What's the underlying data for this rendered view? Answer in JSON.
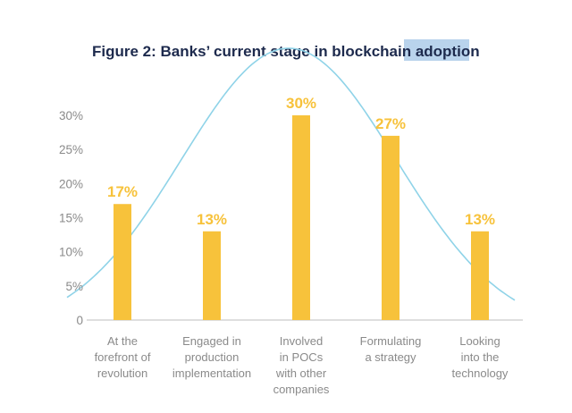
{
  "title": {
    "prefix": "Figure 2: Banks’ current stage in blockchain ",
    "highlighted": "adoption"
  },
  "colors": {
    "bar": "#f7c23b",
    "curve": "#8fd3e8",
    "axis": "#9a9a9a",
    "title": "#1d2a4d",
    "highlight": "#b9d3ec"
  },
  "chart_data": {
    "type": "bar",
    "title": "Figure 2: Banks’ current stage in blockchain adoption",
    "categories": [
      [
        "At the",
        "forefront of",
        "revolution"
      ],
      [
        "Engaged in",
        "production",
        "implementation"
      ],
      [
        "Involved",
        "in POCs",
        "with other",
        "companies"
      ],
      [
        "Formulating",
        "a strategy"
      ],
      [
        "Looking",
        "into the",
        "technology"
      ]
    ],
    "values": [
      17,
      13,
      30,
      27,
      13
    ],
    "value_labels": [
      "17%",
      "13%",
      "30%",
      "27%",
      "13%"
    ],
    "y_ticks": [
      0,
      5,
      10,
      15,
      20,
      25,
      30
    ],
    "y_tick_labels": [
      "0",
      "5%",
      "10%",
      "15%",
      "20%",
      "25%",
      "30%"
    ],
    "ylim": [
      0,
      30
    ],
    "xlabel": "",
    "ylabel": "",
    "grid": false,
    "overlay": "bell curve"
  }
}
